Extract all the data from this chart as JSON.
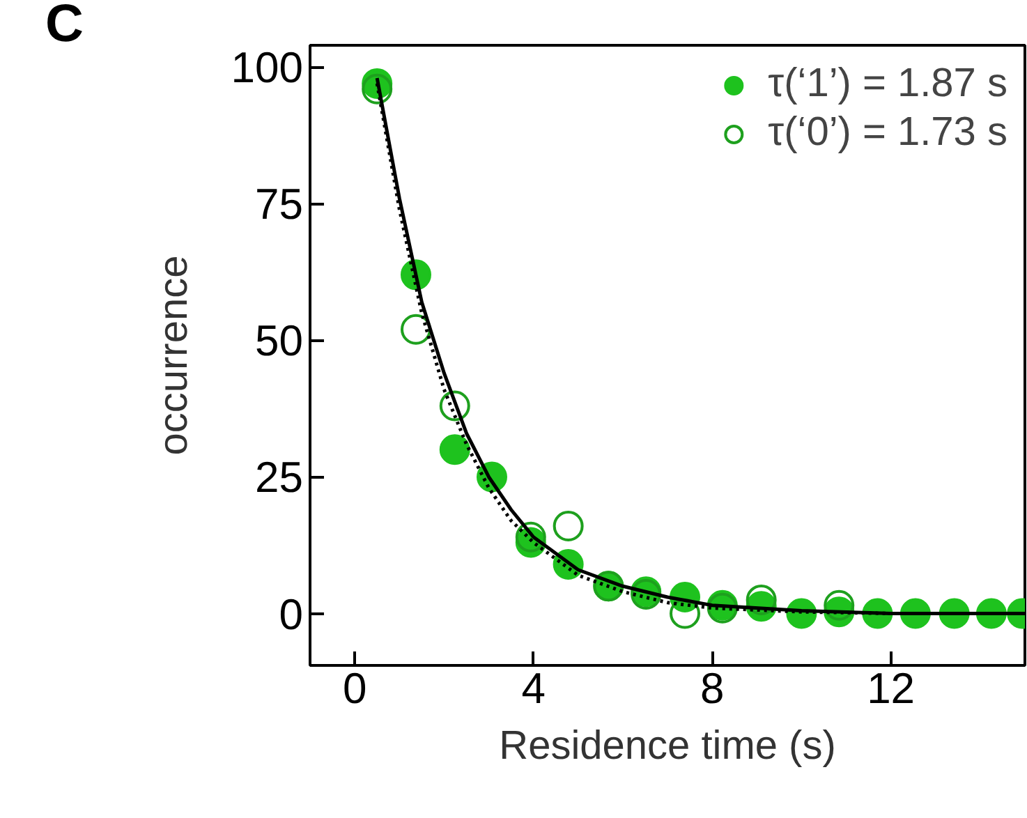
{
  "chart_data": {
    "type": "scatter",
    "title": "C",
    "xlabel": "Residence time (s)",
    "ylabel": "occurrence",
    "xlim": [
      -1,
      15
    ],
    "ylim": [
      -9.5,
      104
    ],
    "xticks": [
      0,
      4,
      8,
      12
    ],
    "yticks": [
      0,
      25,
      50,
      75,
      100
    ],
    "grid": false,
    "legend": "top right",
    "marker": "circle",
    "series": [
      {
        "name": "τ(‘1’) = 1.87 s",
        "color": "#1ec21e",
        "x": [
          0.5,
          1.37,
          2.24,
          3.07,
          3.94,
          4.78,
          5.68,
          6.52,
          7.39,
          8.23,
          9.1,
          10.0,
          10.84,
          11.7,
          12.55,
          13.42,
          14.25,
          14.94
        ],
        "values": [
          97,
          62,
          30,
          25,
          13,
          9,
          5,
          4,
          3,
          1.5,
          1.3,
          0,
          0.3,
          0,
          0,
          0,
          0,
          0
        ]
      },
      {
        "name": "τ(‘0’) = 1.73 s",
        "color": "#1ea01e",
        "marker": "circle_open",
        "x": [
          0.5,
          1.37,
          2.24,
          3.94,
          4.78,
          5.68,
          6.52,
          7.39,
          8.23,
          9.1,
          10.84
        ],
        "values": [
          96,
          52,
          38,
          14,
          16,
          5,
          3.5,
          0,
          1,
          2.5,
          1.5
        ]
      },
      {
        "type": "line",
        "color": "#000000",
        "line_style": "solid",
        "marker": "none",
        "x": [
          0.5,
          1,
          1.5,
          2,
          2.5,
          3,
          3.5,
          4,
          5,
          6,
          7,
          8,
          10,
          12,
          15
        ],
        "values": [
          98,
          76,
          57,
          44,
          33,
          25,
          19,
          14,
          8,
          5,
          3,
          1.5,
          0.5,
          0,
          0
        ]
      },
      {
        "type": "line",
        "color": "#000000",
        "line_style": "dotted",
        "marker": "none",
        "x": [
          0.5,
          1,
          1.5,
          2,
          2.5,
          3,
          3.5,
          4,
          5,
          6,
          7,
          8,
          10,
          12,
          15
        ],
        "values": [
          97,
          74,
          55,
          41,
          31,
          23,
          17,
          13,
          7,
          4,
          2,
          1,
          0.3,
          0,
          0
        ]
      }
    ]
  }
}
